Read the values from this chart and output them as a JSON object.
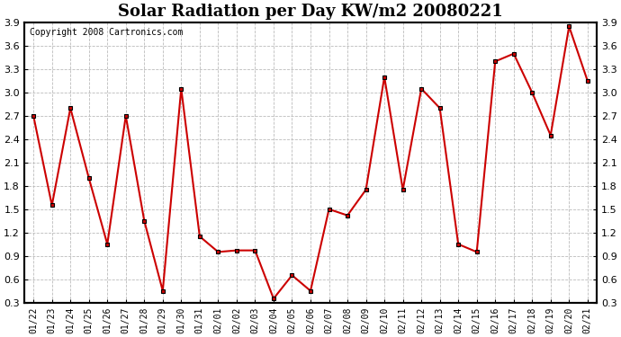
{
  "title": "Solar Radiation per Day KW/m2 20080221",
  "copyright": "Copyright 2008 Cartronics.com",
  "dates": [
    "01/22",
    "01/23",
    "01/24",
    "01/25",
    "01/26",
    "01/27",
    "01/28",
    "01/29",
    "01/30",
    "01/31",
    "02/01",
    "02/02",
    "02/03",
    "02/04",
    "02/05",
    "02/06",
    "02/07",
    "02/08",
    "02/09",
    "02/10",
    "02/11",
    "02/12",
    "02/13",
    "02/14",
    "02/15",
    "02/16",
    "02/17",
    "02/18",
    "02/19",
    "02/20",
    "02/21"
  ],
  "values": [
    2.7,
    1.55,
    2.8,
    1.9,
    1.05,
    2.7,
    1.35,
    0.45,
    3.05,
    1.15,
    0.95,
    0.97,
    0.97,
    0.35,
    0.65,
    0.45,
    1.5,
    1.42,
    1.75,
    3.2,
    1.75,
    3.05,
    2.8,
    1.05,
    0.95,
    3.4,
    3.5,
    3.0,
    2.45,
    3.85,
    3.15
  ],
  "line_color": "#cc0000",
  "marker": "s",
  "marker_size": 3,
  "marker_facecolor": "#cc0000",
  "marker_edgecolor": "#000000",
  "marker_edgewidth": 0.8,
  "background_color": "#ffffff",
  "grid_color": "#bbbbbb",
  "ylim": [
    0.3,
    3.9
  ],
  "yticks": [
    0.3,
    0.6,
    0.9,
    1.2,
    1.5,
    1.8,
    2.1,
    2.4,
    2.7,
    3.0,
    3.3,
    3.6,
    3.9
  ],
  "title_fontsize": 13,
  "copyright_fontsize": 7,
  "tick_fontsize": 8,
  "xtick_fontsize": 7
}
